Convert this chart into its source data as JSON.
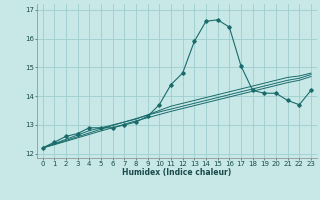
{
  "xlabel": "Humidex (Indice chaleur)",
  "ylabel": "",
  "background_color": "#c8e8e8",
  "grid_color": "#9ecece",
  "line_color": "#1a6b6b",
  "marker_color": "#1a6b6b",
  "xlim": [
    -0.5,
    23.5
  ],
  "ylim": [
    11.85,
    17.2
  ],
  "yticks": [
    12,
    13,
    14,
    15,
    16,
    17
  ],
  "xticks": [
    0,
    1,
    2,
    3,
    4,
    5,
    6,
    7,
    8,
    9,
    10,
    11,
    12,
    13,
    14,
    15,
    16,
    17,
    18,
    19,
    20,
    21,
    22,
    23
  ],
  "series": [
    [
      12.2,
      12.4,
      12.6,
      12.7,
      12.9,
      12.9,
      12.9,
      13.0,
      13.1,
      13.3,
      13.7,
      14.4,
      14.8,
      15.9,
      16.6,
      16.65,
      16.4,
      15.05,
      14.2,
      14.1,
      14.1,
      13.85,
      13.7,
      14.2
    ],
    [
      12.2,
      12.35,
      12.5,
      12.65,
      12.8,
      12.9,
      13.0,
      13.1,
      13.2,
      13.35,
      13.5,
      13.65,
      13.75,
      13.85,
      13.95,
      14.05,
      14.15,
      14.25,
      14.35,
      14.45,
      14.55,
      14.65,
      14.7,
      14.8
    ],
    [
      12.2,
      12.33,
      12.46,
      12.59,
      12.72,
      12.85,
      12.98,
      13.1,
      13.22,
      13.34,
      13.45,
      13.55,
      13.65,
      13.75,
      13.85,
      13.95,
      14.05,
      14.15,
      14.25,
      14.35,
      14.45,
      14.55,
      14.62,
      14.75
    ],
    [
      12.2,
      12.31,
      12.43,
      12.55,
      12.67,
      12.79,
      12.9,
      13.02,
      13.14,
      13.25,
      13.36,
      13.47,
      13.57,
      13.67,
      13.77,
      13.87,
      13.97,
      14.07,
      14.17,
      14.27,
      14.37,
      14.47,
      14.55,
      14.68
    ]
  ]
}
